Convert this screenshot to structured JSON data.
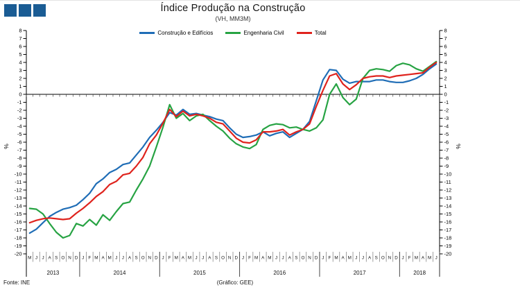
{
  "header": {
    "title": "Índice Produção na Construção",
    "subtitle": "(VH, MM3M)"
  },
  "logo": {
    "color": "#1a5c94",
    "squares": 3
  },
  "footer": {
    "source": "Fonte:  INE",
    "credit": "(Gráfico:  GEE)"
  },
  "chart_data": {
    "type": "line",
    "title": "Índice Produção na Construção",
    "subtitle": "(VH, MM3M)",
    "ylabel_left": "%",
    "ylabel_right": "%",
    "ylim": [
      -20,
      8
    ],
    "ytick_step": 1,
    "grid": false,
    "legend_position": "top-center",
    "years": [
      {
        "label": "2013",
        "months": [
          "M",
          "J",
          "J",
          "A",
          "S",
          "O",
          "N",
          "D"
        ]
      },
      {
        "label": "2014",
        "months": [
          "J",
          "F",
          "M",
          "A",
          "M",
          "J",
          "J",
          "A",
          "S",
          "O",
          "N",
          "D"
        ]
      },
      {
        "label": "2015",
        "months": [
          "J",
          "F",
          "M",
          "A",
          "M",
          "J",
          "J",
          "A",
          "S",
          "O",
          "N",
          "D"
        ]
      },
      {
        "label": "2016",
        "months": [
          "J",
          "F",
          "M",
          "A",
          "M",
          "J",
          "J",
          "A",
          "S",
          "O",
          "N",
          "D"
        ]
      },
      {
        "label": "2017",
        "months": [
          "J",
          "F",
          "M",
          "A",
          "M",
          "J",
          "J",
          "A",
          "S",
          "O",
          "N",
          "D"
        ]
      },
      {
        "label": "2018",
        "months": [
          "J",
          "F",
          "M",
          "A",
          "M",
          "J"
        ]
      }
    ],
    "series": [
      {
        "name": "Construção e Edifícios",
        "color": "#1f6db6",
        "values": [
          -17.4,
          -16.9,
          -16.1,
          -15.3,
          -14.8,
          -14.4,
          -14.2,
          -13.9,
          -13.2,
          -12.4,
          -11.2,
          -10.6,
          -9.8,
          -9.4,
          -8.8,
          -8.6,
          -7.6,
          -6.6,
          -5.4,
          -4.5,
          -3.5,
          -2.3,
          -2.6,
          -1.9,
          -2.5,
          -2.4,
          -2.6,
          -2.8,
          -3.1,
          -3.3,
          -4.2,
          -5.0,
          -5.4,
          -5.3,
          -5.1,
          -4.7,
          -5.2,
          -4.9,
          -4.7,
          -5.4,
          -4.9,
          -4.4,
          -3.4,
          -0.8,
          1.8,
          3.1,
          3.0,
          1.9,
          1.4,
          1.6,
          1.6,
          1.6,
          1.8,
          1.8,
          1.6,
          1.5,
          1.5,
          1.7,
          2.0,
          2.5,
          3.2,
          3.8
        ]
      },
      {
        "name": "Engenharia Civil",
        "color": "#27a343",
        "values": [
          -14.3,
          -14.4,
          -15.0,
          -16.2,
          -17.3,
          -18.0,
          -17.7,
          -16.2,
          -16.5,
          -15.7,
          -16.4,
          -15.1,
          -15.8,
          -14.7,
          -13.7,
          -13.5,
          -12.0,
          -10.6,
          -9.0,
          -6.6,
          -4.1,
          -1.3,
          -3.0,
          -2.4,
          -3.3,
          -2.7,
          -2.5,
          -3.3,
          -4.0,
          -4.6,
          -5.5,
          -6.2,
          -6.6,
          -6.8,
          -6.3,
          -4.4,
          -3.9,
          -3.7,
          -3.8,
          -4.2,
          -4.1,
          -4.4,
          -4.6,
          -4.2,
          -3.2,
          0.0,
          1.3,
          -0.4,
          -1.3,
          -0.6,
          2.0,
          3.0,
          3.2,
          3.1,
          2.9,
          3.6,
          3.9,
          3.7,
          3.2,
          2.9,
          3.5,
          4.1
        ]
      },
      {
        "name": "Total",
        "color": "#df231d",
        "values": [
          -16.1,
          -15.8,
          -15.6,
          -15.5,
          -15.6,
          -15.7,
          -15.6,
          -14.9,
          -14.3,
          -13.6,
          -12.8,
          -12.2,
          -11.3,
          -10.9,
          -10.1,
          -9.9,
          -9.0,
          -7.9,
          -6.2,
          -5.1,
          -3.6,
          -1.9,
          -2.8,
          -2.1,
          -2.7,
          -2.5,
          -2.7,
          -3.0,
          -3.5,
          -3.7,
          -4.6,
          -5.5,
          -6.0,
          -6.1,
          -5.7,
          -4.7,
          -4.7,
          -4.6,
          -4.4,
          -5.1,
          -4.7,
          -4.4,
          -3.7,
          -1.5,
          0.5,
          2.3,
          2.6,
          1.3,
          0.6,
          1.2,
          2.0,
          2.2,
          2.3,
          2.3,
          2.1,
          2.3,
          2.4,
          2.5,
          2.6,
          2.7,
          3.4,
          4.0
        ]
      }
    ]
  }
}
